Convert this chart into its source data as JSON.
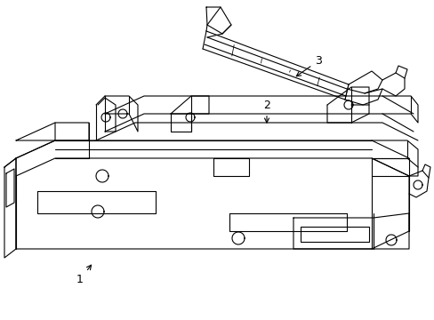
{
  "background_color": "#ffffff",
  "line_color": "#000000",
  "line_width": 0.8,
  "label_fontsize": 9,
  "figsize": [
    4.89,
    3.6
  ],
  "dpi": 100
}
